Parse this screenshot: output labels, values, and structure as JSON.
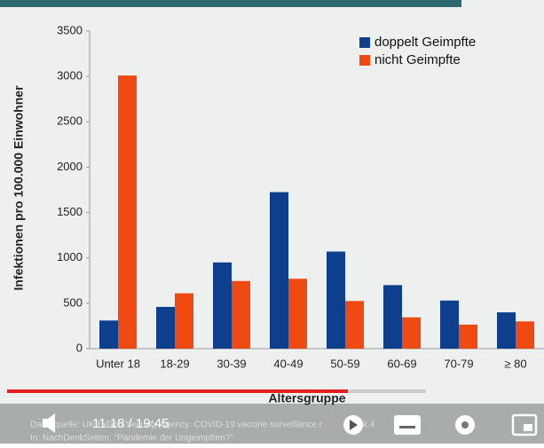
{
  "chart_data": {
    "type": "bar",
    "ylabel": "Infektionen pro 100.000 Einwohner",
    "xlabel": "Altersgruppe",
    "categories": [
      "Unter 18",
      "18-29",
      "30-39",
      "40-49",
      "50-59",
      "60-69",
      "70-79",
      "≥ 80"
    ],
    "series": [
      {
        "name": "doppelt Geimpfte",
        "color": "#0d3f8c",
        "values": [
          310,
          460,
          950,
          1725,
          1070,
          700,
          530,
          400
        ]
      },
      {
        "name": "nicht Geimpfte",
        "color": "#f04a12",
        "values": [
          3010,
          610,
          745,
          770,
          525,
          345,
          265,
          300
        ]
      }
    ],
    "ylim": [
      0,
      3500
    ],
    "yticks": [
      0,
      500,
      1000,
      1500,
      2000,
      2500,
      3000,
      3500
    ],
    "legend": "upper right"
  },
  "source": [
    "Datenquelle: UK Health Security Agency: COVID-19 vaccine surveillance report Week 4",
    "In: NachDenkSeiten: \"Pandemie der Ungeimpften?\""
  ],
  "player": {
    "time": "11:18 / 19:45"
  }
}
